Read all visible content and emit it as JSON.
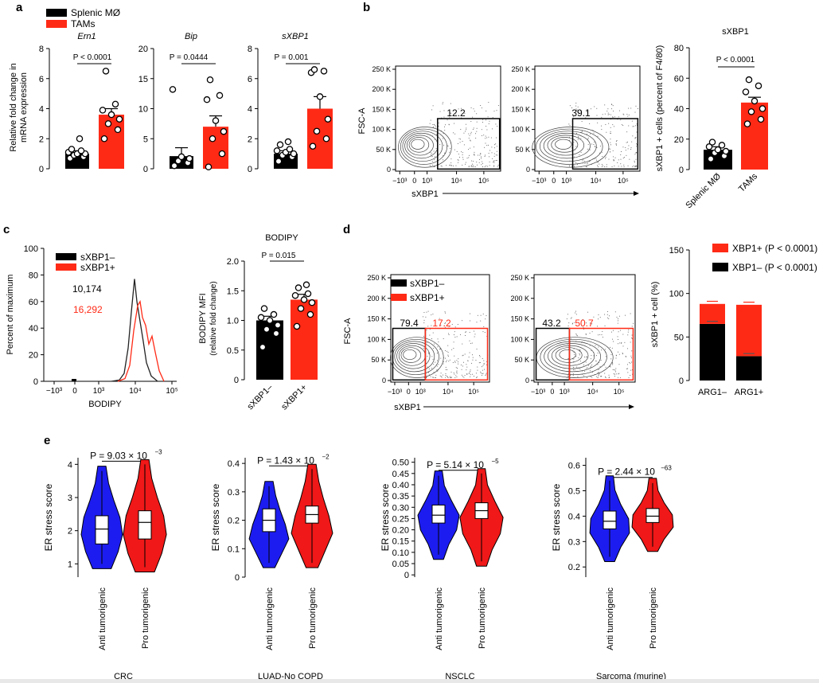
{
  "panel_labels": [
    "a",
    "b",
    "c",
    "d",
    "e"
  ],
  "colors": {
    "black": "#000000",
    "red": "#ff2a16",
    "blue": "#1c1cf0",
    "violin_red": "#f01818",
    "bottom_bar": "#e8e8e8"
  },
  "panel_a": {
    "legend": [
      "Splenic MØ",
      "TAMs"
    ],
    "ylabel_lines": [
      "Relative fold change in",
      "mRNA expression"
    ],
    "plots": [
      {
        "title": "Ern1",
        "pvalue": "P < 0.0001",
        "ylim": [
          0,
          8
        ],
        "ticks": [
          0,
          2,
          4,
          6,
          8
        ]
      },
      {
        "title": "Bip",
        "pvalue": "P = 0.0444",
        "ylim": [
          0,
          20
        ],
        "ticks": [
          0,
          5,
          10,
          15,
          20
        ]
      },
      {
        "title": "sXBP1",
        "pvalue": "P = 0.001",
        "ylim": [
          0,
          8
        ],
        "ticks": [
          0,
          2,
          4,
          6,
          8
        ]
      }
    ]
  },
  "panel_b": {
    "flow_y_label": "FSC-A",
    "flow_x_label": "sXBP1",
    "flow_y_ticks": [
      "0",
      "50 K",
      "100 K",
      "150 K",
      "200 K",
      "250 K"
    ],
    "flow_x_ticks": [
      "−10³",
      "0",
      "10³",
      "10⁴",
      "10⁵"
    ],
    "gate_values": [
      "12.2",
      "39.1"
    ],
    "bar_title": "sXBP1",
    "bar_pvalue": "P < 0.0001",
    "bar_ylabel": "sXBP1 + cells (percent of F4/80)",
    "bar_ticks": [
      0,
      20,
      40,
      60,
      80
    ],
    "bar_categories": [
      "Splenic MØ",
      "TAMs"
    ]
  },
  "panel_c": {
    "hist_ylabel": "Percent of maximum",
    "hist_xlabel": "BODIPY",
    "hist_yticks": [
      0,
      20,
      40,
      60,
      80,
      100
    ],
    "hist_xticks": [
      "−10³",
      "0",
      "10³",
      "10⁴",
      "10⁵"
    ],
    "legend": [
      "sXBP1–",
      "sXBP1+"
    ],
    "mfi_values": [
      "10,174",
      "16,292"
    ],
    "bar_title": "BODIPY",
    "bar_pvalue": "P = 0.015",
    "bar_ylabel_lines": [
      "BODIPY MFI",
      "(relative fold change)"
    ],
    "bar_ticks": [
      "0",
      "0.5",
      "1.0",
      "1.5",
      "2.0"
    ],
    "bar_categories": [
      "sXBP1–",
      "sXBP1+"
    ]
  },
  "panel_d": {
    "flow_y_label": "FSC-A",
    "flow_x_label": "sXBP1",
    "flow_y_ticks": [
      "0",
      "50 K",
      "100 K",
      "150 K",
      "200 K",
      "250 K"
    ],
    "flow_x_ticks": [
      "−10³",
      "0",
      "10³",
      "10⁴",
      "10⁵"
    ],
    "legend": [
      "sXBP1–",
      "sXBP1+"
    ],
    "gate_values_left": [
      "79.4",
      "17.2"
    ],
    "gate_values_right": [
      "43.2",
      "50.7"
    ],
    "stack_legend": [
      "XBP1+ (P < 0.0001)",
      "XBP1– (P < 0.0001)"
    ],
    "stack_ylabel": "sXBP1 + cell (%)",
    "stack_ticks": [
      0,
      50,
      100,
      150
    ],
    "stack_categories": [
      "ARG1–",
      "ARG1+"
    ]
  },
  "panel_e": {
    "ylabel": "ER stress score",
    "categories": [
      "Anti tumorigenic",
      "Pro tumorigenic"
    ],
    "plots": [
      {
        "name": "CRC",
        "p_main": "P = 9.03 × 10",
        "p_exp": "−3",
        "ticks": [
          "1",
          "2",
          "3",
          "4"
        ]
      },
      {
        "name": "LUAD-No COPD",
        "p_main": "P = 1.43 × 10",
        "p_exp": "−2",
        "ticks": [
          "0",
          "0.1",
          "0.2",
          "0.3",
          "0.4"
        ]
      },
      {
        "name": "NSCLC",
        "p_main": "P = 5.14 × 10",
        "p_exp": "−5",
        "ticks": [
          "0",
          "0.05",
          "0.10",
          "0.15",
          "0.20",
          "0.25",
          "0.30",
          "0.35",
          "0.40",
          "0.45",
          "0.50"
        ]
      },
      {
        "name": "Sarcoma (murine)",
        "p_main": "P = 2.44 × 10",
        "p_exp": "−63",
        "ticks": [
          "0.2",
          "0.3",
          "0.4",
          "0.5",
          "0.6"
        ]
      }
    ]
  },
  "chart_data": [
    {
      "panel": "a",
      "title": "Ern1",
      "type": "bar",
      "categories": [
        "Splenic MØ",
        "TAMs"
      ],
      "values": [
        1.0,
        3.6
      ],
      "errors": [
        0.2,
        0.4
      ],
      "ylim": [
        0,
        8
      ],
      "points": [
        [
          0.7,
          0.8,
          0.9,
          1.0,
          1.0,
          1.1,
          1.2,
          1.3,
          2.0
        ],
        [
          2.0,
          2.6,
          3.0,
          3.3,
          3.6,
          3.9,
          4.3,
          6.5
        ]
      ]
    },
    {
      "panel": "a",
      "title": "Bip",
      "type": "bar",
      "categories": [
        "Splenic MØ",
        "TAMs"
      ],
      "values": [
        2.1,
        7.0
      ],
      "errors": [
        1.4,
        1.8
      ],
      "ylim": [
        0,
        20
      ],
      "points": [
        [
          0.5,
          1.0,
          1.3,
          1.7,
          2.0,
          13.2
        ],
        [
          0.3,
          2.5,
          5.0,
          6.2,
          8.0,
          11.5,
          12.2,
          14.8
        ]
      ]
    },
    {
      "panel": "a",
      "title": "sXBP1",
      "type": "bar",
      "categories": [
        "Splenic MØ",
        "TAMs"
      ],
      "values": [
        1.0,
        4.0
      ],
      "errors": [
        0.2,
        0.8
      ],
      "ylim": [
        0,
        8
      ],
      "points": [
        [
          0.5,
          0.8,
          0.9,
          1.0,
          1.1,
          1.2,
          1.3,
          1.6,
          1.8
        ],
        [
          1.5,
          2.0,
          2.5,
          3.3,
          4.8,
          6.4,
          6.5,
          6.6
        ]
      ]
    },
    {
      "panel": "b",
      "title": "sXBP1",
      "type": "bar",
      "categories": [
        "Splenic MØ",
        "TAMs"
      ],
      "values": [
        13,
        44
      ],
      "errors": [
        2,
        3.5
      ],
      "ylim": [
        0,
        80
      ],
      "points": [
        [
          7,
          9,
          11,
          12,
          13,
          15,
          16,
          18
        ],
        [
          30,
          33,
          38,
          40,
          45,
          51,
          55,
          59
        ]
      ]
    },
    {
      "panel": "c",
      "title": "BODIPY",
      "type": "bar",
      "categories": [
        "sXBP1–",
        "sXBP1+"
      ],
      "values": [
        1.0,
        1.35
      ],
      "errors": [
        0.07,
        0.09
      ],
      "ylim": [
        0,
        2.0
      ],
      "points": [
        [
          0.55,
          0.78,
          0.85,
          0.92,
          1.0,
          1.05,
          1.1,
          1.2
        ],
        [
          0.9,
          1.1,
          1.2,
          1.3,
          1.35,
          1.42,
          1.45,
          1.55,
          1.6
        ]
      ]
    },
    {
      "panel": "d",
      "type": "bar",
      "stacked": true,
      "categories": [
        "ARG1–",
        "ARG1+"
      ],
      "series": [
        {
          "name": "XBP1– (P < 0.0001)",
          "values": [
            65,
            28
          ],
          "errors": [
            3,
            3
          ]
        },
        {
          "name": "XBP1+ (P < 0.0001)",
          "values": [
            23,
            59
          ],
          "errors": [
            3,
            3
          ]
        }
      ],
      "ylim": [
        0,
        150
      ]
    },
    {
      "panel": "c",
      "type": "histogram",
      "xlabel": "BODIPY",
      "ylabel": "Percent of maximum",
      "ylim": [
        0,
        100
      ],
      "series": [
        {
          "name": "sXBP1–",
          "mfi": "10,174",
          "peak": 77
        },
        {
          "name": "sXBP1+",
          "mfi": "16,292",
          "peak": 60
        }
      ]
    },
    {
      "panel": "e",
      "type": "violin",
      "categories": [
        "Anti tumorigenic",
        "Pro tumorigenic"
      ],
      "plots": [
        {
          "name": "CRC",
          "ylim": [
            0.6,
            4.2
          ],
          "boxes": [
            {
              "q1": 1.6,
              "median": 2.05,
              "q3": 2.45,
              "wlo": 1.0,
              "whi": 3.8
            },
            {
              "q1": 1.75,
              "median": 2.25,
              "q3": 2.6,
              "wlo": 0.9,
              "whi": 4.0
            }
          ]
        },
        {
          "name": "LUAD-No COPD",
          "ylim": [
            0.0,
            0.42
          ],
          "boxes": [
            {
              "q1": 0.16,
              "median": 0.2,
              "q3": 0.24,
              "wlo": 0.05,
              "whi": 0.32
            },
            {
              "q1": 0.19,
              "median": 0.22,
              "q3": 0.25,
              "wlo": 0.05,
              "whi": 0.38
            }
          ]
        },
        {
          "name": "NSCLC",
          "ylim": [
            -0.01,
            0.52
          ],
          "boxes": [
            {
              "q1": 0.23,
              "median": 0.265,
              "q3": 0.31,
              "wlo": 0.09,
              "whi": 0.44
            },
            {
              "q1": 0.25,
              "median": 0.285,
              "q3": 0.32,
              "wlo": 0.06,
              "whi": 0.45
            }
          ]
        },
        {
          "name": "Sarcoma (murine)",
          "ylim": [
            0.16,
            0.63
          ],
          "boxes": [
            {
              "q1": 0.35,
              "median": 0.38,
              "q3": 0.42,
              "wlo": 0.24,
              "whi": 0.54
            },
            {
              "q1": 0.375,
              "median": 0.4,
              "q3": 0.43,
              "wlo": 0.28,
              "whi": 0.53
            }
          ]
        }
      ]
    }
  ]
}
